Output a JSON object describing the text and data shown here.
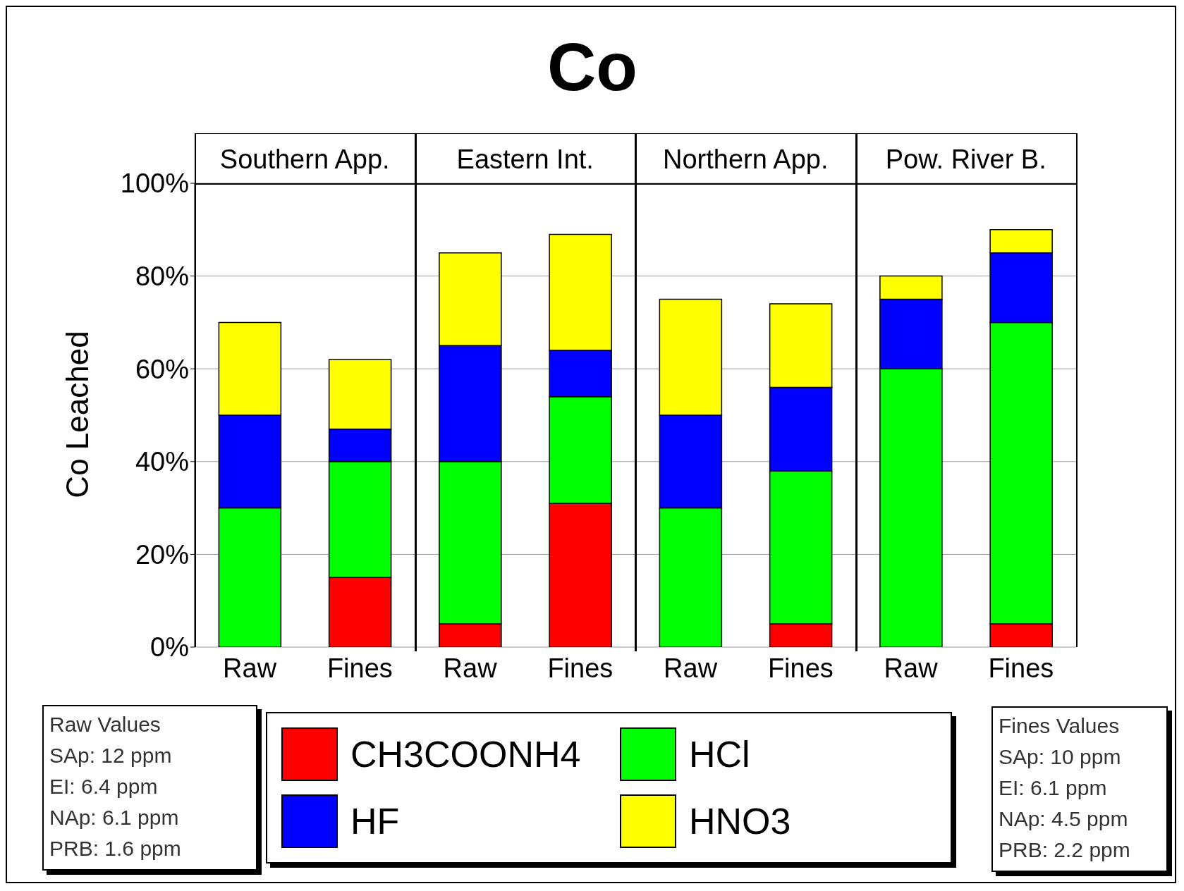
{
  "chart_data": {
    "type": "bar",
    "title": "Co",
    "ylabel": "Co Leached",
    "stacked": true,
    "grid": "y",
    "legend": "bottom",
    "categories": [
      "Raw",
      "Fines",
      "Raw",
      "Fines",
      "Raw",
      "Fines",
      "Raw",
      "Fines"
    ],
    "series": [
      {
        "name": "CH3COONH4",
        "color": "#ff0000",
        "values": [
          0,
          15,
          5,
          31,
          0,
          5,
          0,
          5
        ]
      },
      {
        "name": "HCl",
        "color": "#00ff00",
        "values": [
          30,
          25,
          35,
          23,
          30,
          33,
          60,
          65
        ]
      },
      {
        "name": "HF",
        "color": "#0000ff",
        "values": [
          20,
          7,
          25,
          10,
          20,
          18,
          15,
          15
        ]
      },
      {
        "name": "HNO3",
        "color": "#ffff00",
        "values": [
          20,
          15,
          20,
          25,
          25,
          18,
          5,
          5
        ]
      }
    ],
    "ylim": [
      0,
      100
    ],
    "yticks": [
      {
        "value": 0,
        "label": "0%"
      },
      {
        "value": 20,
        "label": "20%"
      },
      {
        "value": 40,
        "label": "40%"
      },
      {
        "value": 60,
        "label": "60%"
      },
      {
        "value": 80,
        "label": "80%"
      },
      {
        "value": 100,
        "label": "100%"
      }
    ],
    "annotations": [
      "Southern App.",
      "Eastern Int.",
      "Northern App.",
      "Pow. River B.",
      "Raw Values",
      "SAp: 12 ppm",
      "EI: 6.4 ppm",
      "NAp: 6.1 ppm",
      "PRB: 1.6 ppm",
      "Fines Values",
      "SAp: 10 ppm",
      "EI: 6.1 ppm",
      "NAp: 4.5 ppm",
      "PRB: 2.2 ppm"
    ]
  }
}
